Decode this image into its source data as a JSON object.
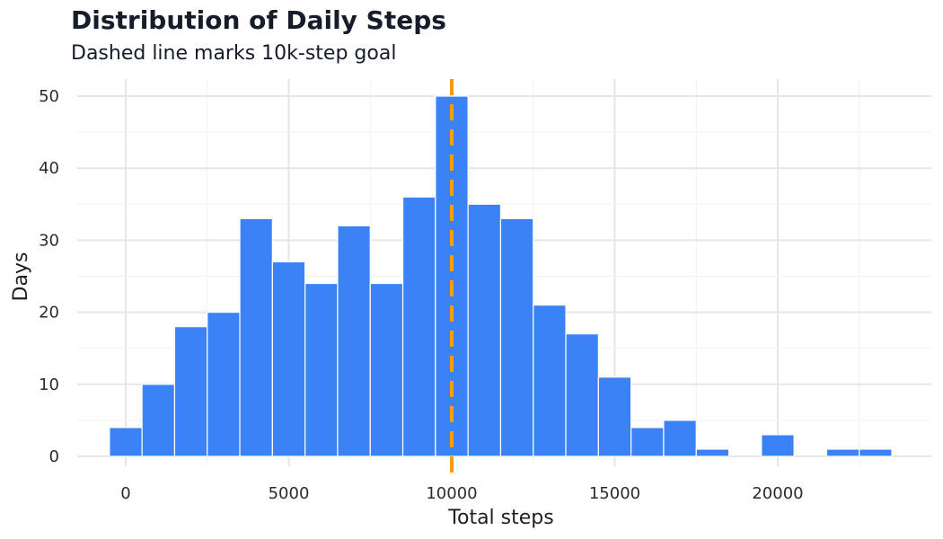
{
  "chart_data": {
    "type": "bar",
    "subtype": "histogram",
    "title": "Distribution of Daily Steps",
    "subtitle": "Dashed line marks 10k-step goal",
    "xlabel": "Total steps",
    "ylabel": "Days",
    "xlim": [
      -1000,
      24000
    ],
    "ylim": [
      0,
      52
    ],
    "x_ticks": [
      0,
      5000,
      10000,
      15000,
      20000
    ],
    "y_ticks": [
      0,
      10,
      20,
      30,
      40,
      50
    ],
    "bin_width": 1000,
    "bin_centers": [
      0,
      1000,
      2000,
      3000,
      4000,
      5000,
      6000,
      7000,
      8000,
      9000,
      10000,
      11000,
      12000,
      13000,
      14000,
      15000,
      16000,
      17000,
      18000,
      19000,
      20000,
      21000,
      22000,
      23000
    ],
    "counts": [
      4,
      10,
      18,
      20,
      33,
      27,
      24,
      32,
      24,
      36,
      50,
      35,
      33,
      21,
      17,
      11,
      4,
      5,
      1,
      0,
      3,
      0,
      1,
      1
    ],
    "goal_line": {
      "x": 10000,
      "style": "dashed",
      "color": "#f59e0b"
    },
    "bar_color": "#3b82f6",
    "grid": true,
    "legend": "none"
  }
}
